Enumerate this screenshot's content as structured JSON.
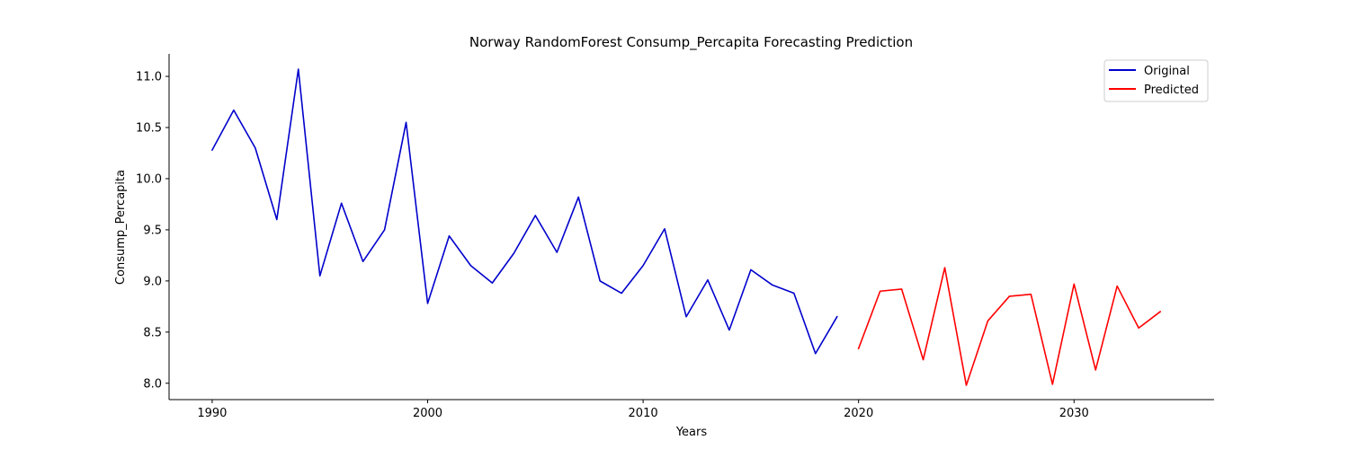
{
  "chart_data": {
    "type": "line",
    "title": "Norway RandomForest Consump_Percapita Forecasting Prediction",
    "xlabel": "Years",
    "ylabel": "Consump_Percapita",
    "xlim": [
      1988,
      2036.5
    ],
    "ylim": [
      7.84,
      11.22
    ],
    "xticks": [
      1990,
      2000,
      2010,
      2020,
      2030
    ],
    "yticks": [
      8.0,
      8.5,
      9.0,
      9.5,
      10.0,
      10.5,
      11.0
    ],
    "ytick_labels": [
      "8.0",
      "8.5",
      "9.0",
      "9.5",
      "10.0",
      "10.5",
      "11.0"
    ],
    "grid": false,
    "legend_position": "top-right",
    "series": [
      {
        "name": "Original",
        "color": "#0000cc",
        "x": [
          1990,
          1991,
          1992,
          1993,
          1994,
          1995,
          1996,
          1997,
          1998,
          1999,
          2000,
          2001,
          2002,
          2003,
          2004,
          2005,
          2006,
          2007,
          2008,
          2009,
          2010,
          2011,
          2012,
          2013,
          2014,
          2015,
          2016,
          2017,
          2018,
          2019
        ],
        "y": [
          10.28,
          10.67,
          10.3,
          9.6,
          11.07,
          9.05,
          9.76,
          9.19,
          9.5,
          10.55,
          8.78,
          9.44,
          9.15,
          8.98,
          9.27,
          9.64,
          9.28,
          9.82,
          9.0,
          8.88,
          9.15,
          9.51,
          8.65,
          9.01,
          8.52,
          9.11,
          8.96,
          8.88,
          8.29,
          8.65
        ]
      },
      {
        "name": "Predicted",
        "color": "#ff0000",
        "x": [
          2020,
          2021,
          2022,
          2023,
          2024,
          2025,
          2026,
          2027,
          2028,
          2029,
          2030,
          2031,
          2032,
          2033,
          2034
        ],
        "y": [
          8.34,
          8.9,
          8.92,
          8.23,
          9.13,
          7.98,
          8.61,
          8.85,
          8.87,
          7.99,
          8.97,
          8.13,
          8.95,
          8.54,
          8.7
        ]
      }
    ]
  }
}
